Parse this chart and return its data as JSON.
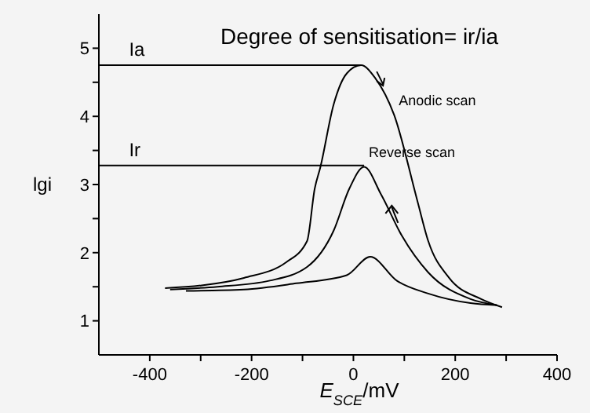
{
  "chart_data": {
    "type": "line",
    "title": "Degree of sensitisation= ir/ia",
    "xlabel": "E$_{SCE}$/mV",
    "ylabel": "lgi",
    "xlim": [
      -500,
      400
    ],
    "ylim": [
      0.5,
      5.5
    ],
    "xticks": [
      -400,
      {
        "value": -300,
        "label": null
      },
      -200,
      {
        "value": -100,
        "label": null
      },
      0,
      {
        "value": 100,
        "label": null
      },
      200,
      {
        "value": 300,
        "label": null
      },
      400
    ],
    "yticks": [
      1,
      {
        "value": 1.5,
        "label": null
      },
      2,
      {
        "value": 2.5,
        "label": null
      },
      3,
      {
        "value": 3.5,
        "label": null
      },
      4,
      {
        "value": 4.5,
        "label": null
      },
      5
    ],
    "grid": false,
    "marker": "none",
    "line_style": "solid",
    "series": [
      {
        "color": "#000000",
        "x": [
          -370,
          -298,
          -215,
          -132,
          -91,
          -76,
          -65,
          -39,
          -13,
          15,
          43,
          80,
          126,
          147,
          188,
          251,
          292
        ],
        "values": [
          1.48,
          1.52,
          1.63,
          1.86,
          2.17,
          2.94,
          3.25,
          4.17,
          4.63,
          4.75,
          4.56,
          4.02,
          2.75,
          2.17,
          1.63,
          1.32,
          1.2
        ]
      },
      {
        "color": "#000000",
        "x": [
          -360,
          -267,
          -164,
          -91,
          -39,
          -8,
          21,
          54,
          95,
          147,
          230,
          282
        ],
        "values": [
          1.46,
          1.5,
          1.59,
          1.79,
          2.32,
          2.94,
          3.26,
          2.86,
          2.25,
          1.71,
          1.32,
          1.23
        ]
      },
      {
        "color": "#000000",
        "x": [
          -329,
          -215,
          -112,
          -13,
          33,
          85,
          147,
          230,
          282
        ],
        "values": [
          1.44,
          1.46,
          1.55,
          1.67,
          1.94,
          1.59,
          1.4,
          1.26,
          1.23
        ]
      },
      {
        "color": "#000000",
        "x": [
          -500,
          15
        ],
        "values": [
          4.75,
          4.75
        ]
      },
      {
        "color": "#000000",
        "x": [
          -500,
          21
        ],
        "values": [
          3.28,
          3.28
        ]
      }
    ],
    "annotations": [
      {
        "text": "Ia",
        "x": -450,
        "y": 4.75
      },
      {
        "text": "Ir",
        "x": -450,
        "y": 3.28
      },
      {
        "text": "Anodic scan",
        "x": 80,
        "y": 4.02
      },
      {
        "text": "Reverse scan",
        "x": 21,
        "y": 3.26
      }
    ]
  }
}
